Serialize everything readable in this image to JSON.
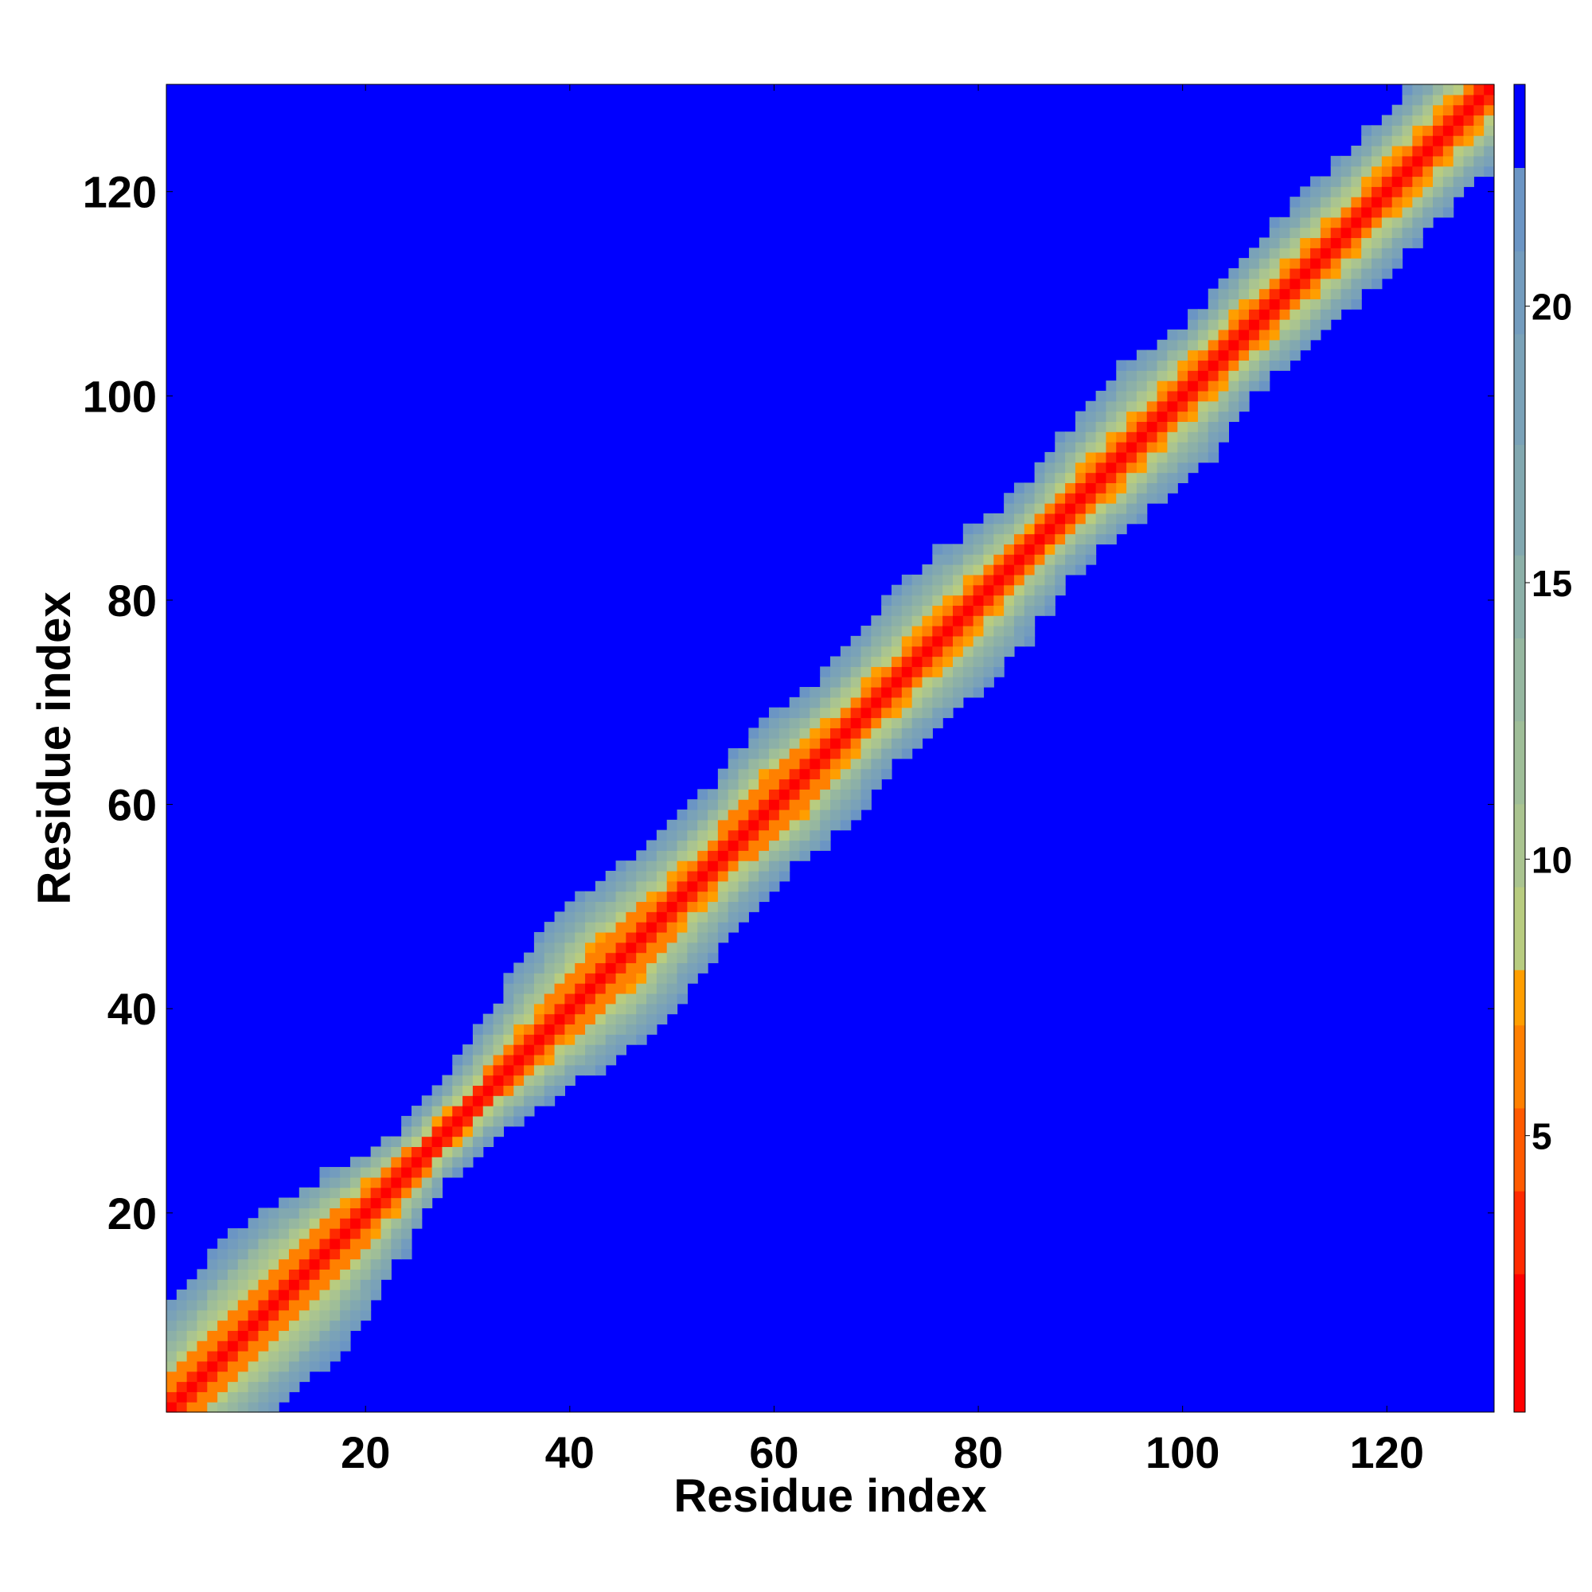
{
  "chart_data": {
    "type": "heatmap",
    "title": "",
    "xlabel": "Residue index",
    "ylabel": "Residue index",
    "n_residues": 130,
    "xlim": [
      1,
      130
    ],
    "ylim": [
      1,
      130
    ],
    "x_ticks": [
      20,
      40,
      60,
      80,
      100,
      120
    ],
    "y_ticks": [
      20,
      40,
      60,
      80,
      100,
      120
    ],
    "colorbar": {
      "range": [
        0,
        22.5
      ],
      "ticks": [
        5,
        10,
        15,
        20
      ],
      "above_max_color": "#0000ff",
      "levels": [
        {
          "from": 0.0,
          "to": 2.5,
          "color": "#ff0000"
        },
        {
          "from": 2.5,
          "to": 4.0,
          "color": "#ff2a00"
        },
        {
          "from": 4.0,
          "to": 5.5,
          "color": "#ff5a00"
        },
        {
          "from": 5.5,
          "to": 7.0,
          "color": "#ff8000"
        },
        {
          "from": 7.0,
          "to": 8.0,
          "color": "#ff9e00"
        },
        {
          "from": 8.0,
          "to": 9.5,
          "color": "#b8cc80"
        },
        {
          "from": 9.5,
          "to": 11.0,
          "color": "#aac490"
        },
        {
          "from": 11.0,
          "to": 12.5,
          "color": "#9fbe98"
        },
        {
          "from": 12.5,
          "to": 14.0,
          "color": "#96b7a0"
        },
        {
          "from": 14.0,
          "to": 15.5,
          "color": "#8cb0a8"
        },
        {
          "from": 15.5,
          "to": 17.5,
          "color": "#82a8b0"
        },
        {
          "from": 17.5,
          "to": 19.5,
          "color": "#7aa2b8"
        },
        {
          "from": 19.5,
          "to": 21.0,
          "color": "#739cbe"
        },
        {
          "from": 21.0,
          "to": 22.5,
          "color": "#6b95c4"
        }
      ]
    },
    "band_profile": {
      "description_residue": [
        1,
        8,
        14,
        20,
        26,
        32,
        38,
        44,
        50,
        56,
        60,
        64,
        68,
        74,
        80,
        86,
        92,
        98,
        104,
        110,
        116,
        122,
        130
      ],
      "half_width_green": [
        9,
        11,
        11,
        8,
        5,
        6,
        9,
        11,
        9,
        8,
        9,
        9,
        8,
        9,
        9,
        7,
        8,
        9,
        7,
        8,
        8,
        8,
        8
      ],
      "half_width_orange": [
        3,
        4,
        4,
        3,
        2,
        2,
        3,
        4,
        3,
        3,
        4,
        3,
        3,
        3,
        3,
        2,
        3,
        3,
        3,
        3,
        3,
        3,
        3
      ]
    }
  }
}
